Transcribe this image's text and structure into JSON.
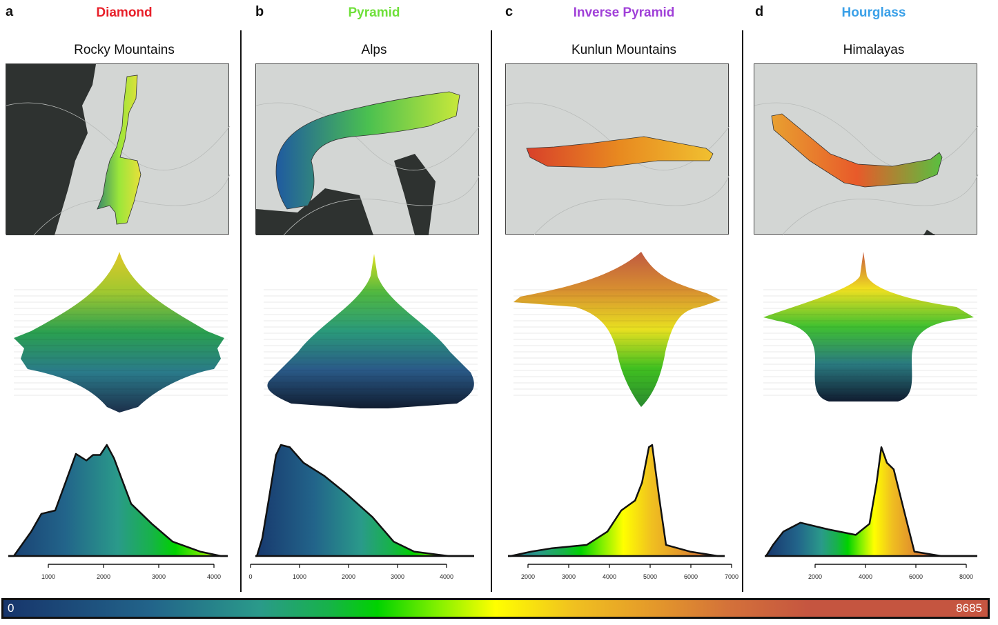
{
  "colorbar": {
    "min_label": "0",
    "max_label": "8685",
    "min": 0,
    "max": 8685,
    "stops": [
      [
        0,
        "#17356b"
      ],
      [
        0.15,
        "#22648a"
      ],
      [
        0.26,
        "#2a9a8a"
      ],
      [
        0.33,
        "#17b24a"
      ],
      [
        0.38,
        "#00d200"
      ],
      [
        0.44,
        "#80f000"
      ],
      [
        0.5,
        "#ffff00"
      ],
      [
        0.58,
        "#f0c020"
      ],
      [
        0.66,
        "#e4992a"
      ],
      [
        0.74,
        "#d3703a"
      ],
      [
        0.82,
        "#c55540"
      ],
      [
        1,
        "#c55540"
      ]
    ]
  },
  "panels": [
    {
      "letter": "a",
      "type": "Diamond",
      "type_color": "#e8202a",
      "range": "Rocky Mountains"
    },
    {
      "letter": "b",
      "type": "Pyramid",
      "type_color": "#6fe03a",
      "range": "Alps"
    },
    {
      "letter": "c",
      "type": "Inverse Pyramid",
      "type_color": "#a040d8",
      "range": "Kunlun Mountains"
    },
    {
      "letter": "d",
      "type": "Hourglass",
      "type_color": "#3aa0e8",
      "range": "Himalayas"
    }
  ],
  "chart_data": [
    {
      "type": "area",
      "panel": "a",
      "x_ticks": [
        1000,
        2000,
        3000,
        4000
      ],
      "tick_labels": [
        "1000",
        "2000",
        "3000",
        "4000"
      ],
      "xlim": [
        275,
        4250
      ],
      "points": [
        [
          375,
          0
        ],
        [
          690,
          0.22
        ],
        [
          875,
          0.38
        ],
        [
          1125,
          0.41
        ],
        [
          1310,
          0.66
        ],
        [
          1500,
          0.92
        ],
        [
          1690,
          0.86
        ],
        [
          1810,
          0.91
        ],
        [
          1940,
          0.91
        ],
        [
          2060,
          1.0
        ],
        [
          2190,
          0.88
        ],
        [
          2310,
          0.72
        ],
        [
          2500,
          0.47
        ],
        [
          2875,
          0.29
        ],
        [
          3250,
          0.13
        ],
        [
          3750,
          0.04
        ],
        [
          4125,
          0
        ]
      ]
    },
    {
      "type": "area",
      "panel": "b",
      "x_ticks": [
        0,
        1000,
        2000,
        3000,
        4000
      ],
      "tick_labels": [
        "0",
        "1000",
        "2000",
        "3000",
        "4000"
      ],
      "xlim": [
        0,
        4500
      ],
      "points": [
        [
          130,
          0
        ],
        [
          240,
          0.16
        ],
        [
          380,
          0.53
        ],
        [
          520,
          0.91
        ],
        [
          620,
          1.0
        ],
        [
          800,
          0.98
        ],
        [
          1080,
          0.84
        ],
        [
          1510,
          0.72
        ],
        [
          1930,
          0.57
        ],
        [
          2490,
          0.35
        ],
        [
          2920,
          0.13
        ],
        [
          3340,
          0.04
        ],
        [
          4040,
          0
        ]
      ]
    },
    {
      "type": "area",
      "panel": "c",
      "x_ticks": [
        2000,
        3000,
        4000,
        5000,
        6000,
        7000
      ],
      "tick_labels": [
        "2000",
        "3000",
        "4000",
        "5000",
        "6000",
        "7000"
      ],
      "xlim": [
        1500,
        6800
      ],
      "points": [
        [
          1580,
          0
        ],
        [
          2080,
          0.04
        ],
        [
          2590,
          0.07
        ],
        [
          3440,
          0.1
        ],
        [
          3950,
          0.22
        ],
        [
          4290,
          0.41
        ],
        [
          4630,
          0.5
        ],
        [
          4800,
          0.66
        ],
        [
          4970,
          0.98
        ],
        [
          5050,
          1.0
        ],
        [
          5220,
          0.53
        ],
        [
          5390,
          0.1
        ],
        [
          5980,
          0.04
        ],
        [
          6660,
          0
        ]
      ]
    },
    {
      "type": "area",
      "panel": "d",
      "x_ticks": [
        2000,
        4000,
        6000,
        8000
      ],
      "tick_labels": [
        "2000",
        "4000",
        "6000",
        "8000"
      ],
      "xlim": [
        0,
        8600
      ],
      "points": [
        [
          55,
          0
        ],
        [
          330,
          0.1
        ],
        [
          740,
          0.22
        ],
        [
          1420,
          0.3
        ],
        [
          2520,
          0.24
        ],
        [
          3610,
          0.19
        ],
        [
          4160,
          0.29
        ],
        [
          4440,
          0.66
        ],
        [
          4630,
          0.98
        ],
        [
          4850,
          0.84
        ],
        [
          5120,
          0.78
        ],
        [
          5530,
          0.41
        ],
        [
          5940,
          0.04
        ],
        [
          7000,
          0
        ]
      ]
    }
  ]
}
